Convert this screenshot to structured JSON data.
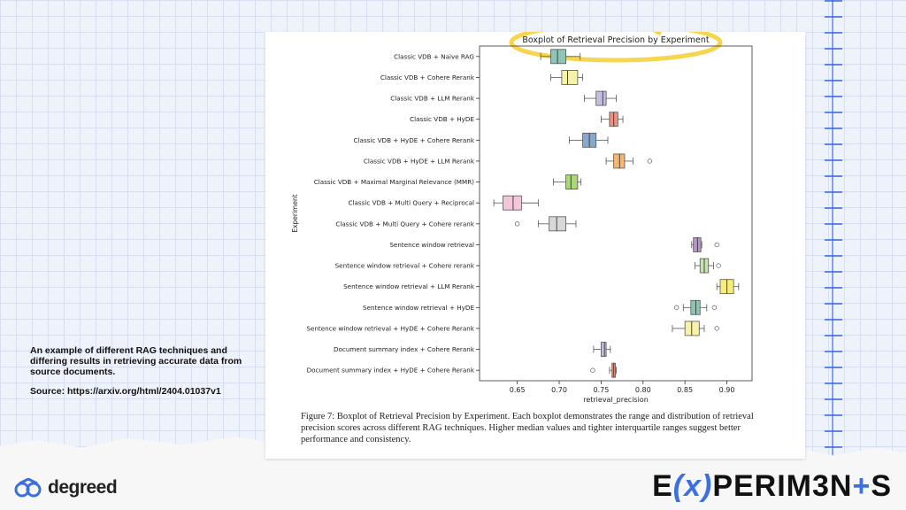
{
  "note": {
    "description": "An example of different RAG techniques and differing results in retrieving accurate data from source documents.",
    "source": "Source: https://arxiv.org/html/2404.01037v1"
  },
  "caption": "Figure 7: Boxplot of Retrieval Precision by Experiment. Each boxplot demonstrates the range and distribution of retrieval precision scores across different RAG techniques. Higher median values and tighter interquartile ranges suggest better performance and consistency.",
  "logos": {
    "degreed": "degreed",
    "experiments_pre": "E",
    "experiments_x": "(x)",
    "experiments_post": "PERIM3N",
    "experiments_plus": "+",
    "experiments_end": "S"
  },
  "colors": {
    "accent": "#3d6fe0",
    "highlight": "#f5d13b"
  },
  "chart_data": {
    "type": "boxplot",
    "title": "Boxplot of Retrieval Precision by Experiment",
    "xlabel": "retrieval_precision",
    "ylabel": "Experiment",
    "xlim": [
      0.605,
      0.93
    ],
    "xticks": [
      "0.65",
      "0.70",
      "0.75",
      "0.80",
      "0.85",
      "0.90"
    ],
    "categories": [
      {
        "label": "Classic VDB + Naive RAG",
        "min": 0.678,
        "q1": 0.69,
        "median": 0.698,
        "q3": 0.708,
        "max": 0.725,
        "outliers": [],
        "color": "#8cc6b6"
      },
      {
        "label": "Classic VDB + Cohere Rerank",
        "min": 0.69,
        "q1": 0.703,
        "median": 0.71,
        "q3": 0.722,
        "max": 0.728,
        "outliers": [],
        "color": "#f6f3a8"
      },
      {
        "label": "Classic VDB + LLM Rerank",
        "min": 0.73,
        "q1": 0.744,
        "median": 0.752,
        "q3": 0.756,
        "max": 0.768,
        "outliers": [],
        "color": "#c2bfe0"
      },
      {
        "label": "Classic VDB + HyDE",
        "min": 0.75,
        "q1": 0.76,
        "median": 0.765,
        "q3": 0.77,
        "max": 0.776,
        "outliers": [],
        "color": "#ef8f7f"
      },
      {
        "label": "Classic VDB + HyDE + Cohere Rerank",
        "min": 0.712,
        "q1": 0.728,
        "median": 0.736,
        "q3": 0.744,
        "max": 0.758,
        "outliers": [],
        "color": "#86a8cf"
      },
      {
        "label": "Classic VDB + HyDE + LLM Rerank",
        "min": 0.756,
        "q1": 0.765,
        "median": 0.772,
        "q3": 0.778,
        "max": 0.788,
        "outliers": [
          0.808
        ],
        "color": "#f6b770"
      },
      {
        "label": "Classic VDB + Maximal Marginal Relevance (MMR)",
        "min": 0.693,
        "q1": 0.708,
        "median": 0.714,
        "q3": 0.722,
        "max": 0.726,
        "outliers": [],
        "color": "#abd67a"
      },
      {
        "label": "Classic VDB + Multi Query + Reciprocal",
        "min": 0.622,
        "q1": 0.633,
        "median": 0.645,
        "q3": 0.655,
        "max": 0.675,
        "outliers": [],
        "color": "#f4c6dc"
      },
      {
        "label": "Classic VDB + Multi Query + Cohere rerank",
        "min": 0.675,
        "q1": 0.688,
        "median": 0.697,
        "q3": 0.708,
        "max": 0.72,
        "outliers": [
          0.65
        ],
        "color": "#d8d8d8"
      },
      {
        "label": "Sentence window retrieval",
        "min": 0.858,
        "q1": 0.86,
        "median": 0.865,
        "q3": 0.869,
        "max": 0.87,
        "outliers": [
          0.888
        ],
        "color": "#b497c8"
      },
      {
        "label": "Sentence window retrieval + Cohere rerank",
        "min": 0.862,
        "q1": 0.868,
        "median": 0.873,
        "q3": 0.878,
        "max": 0.884,
        "outliers": [
          0.89
        ],
        "color": "#c6e3b0"
      },
      {
        "label": "Sentence window retrieval + LLM Rerank",
        "min": 0.888,
        "q1": 0.892,
        "median": 0.9,
        "q3": 0.908,
        "max": 0.914,
        "outliers": [],
        "color": "#f7ec7e"
      },
      {
        "label": "Sentence window retrieval + HyDE",
        "min": 0.848,
        "q1": 0.857,
        "median": 0.863,
        "q3": 0.868,
        "max": 0.876,
        "outliers": [
          0.84,
          0.885
        ],
        "color": "#8cc6b6"
      },
      {
        "label": "Sentence window retrieval + HyDE + Cohere Rerank",
        "min": 0.835,
        "q1": 0.85,
        "median": 0.858,
        "q3": 0.867,
        "max": 0.873,
        "outliers": [
          0.888
        ],
        "color": "#f6f3a8"
      },
      {
        "label": "Document summary index + Cohere Rerank",
        "min": 0.741,
        "q1": 0.75,
        "median": 0.754,
        "q3": 0.756,
        "max": 0.761,
        "outliers": [],
        "color": "#c2bfe0"
      },
      {
        "label": "Document summary index + HyDE + Cohere Rerank",
        "min": 0.76,
        "q1": 0.763,
        "median": 0.765,
        "q3": 0.767,
        "max": 0.768,
        "outliers": [
          0.74
        ],
        "color": "#ef8f7f"
      }
    ]
  }
}
